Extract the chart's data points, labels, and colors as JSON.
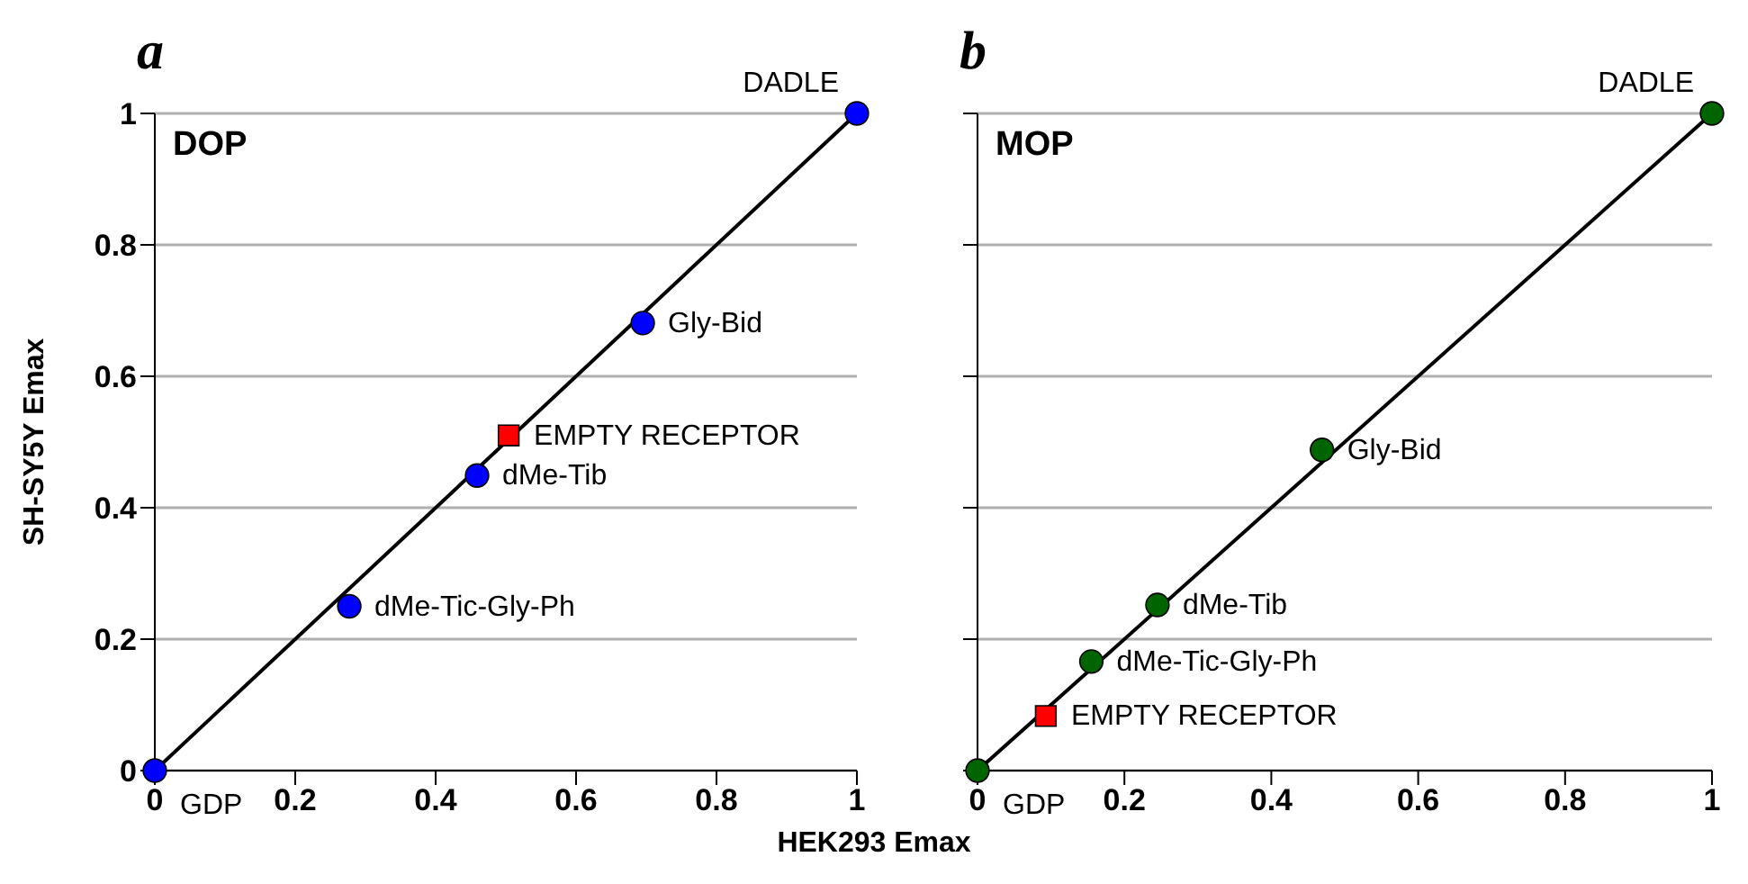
{
  "chart_data": [
    {
      "type": "scatter",
      "title": "a",
      "subtitle": "DOP",
      "xlabel": "HEK293 Emax",
      "ylabel": "SH-SY5Y Emax",
      "xlim": [
        0,
        1
      ],
      "ylim": [
        0,
        1
      ],
      "xticks": [
        0,
        0.2,
        0.4,
        0.6,
        0.8,
        1
      ],
      "yticks": [
        0,
        0.2,
        0.4,
        0.6,
        0.8,
        1
      ],
      "grid": "y",
      "series": [
        {
          "type": "line",
          "color": "#000000",
          "x": [
            0,
            1
          ],
          "values": [
            0,
            1
          ],
          "marker": "none"
        },
        {
          "color": "#0000ff",
          "marker": "circle",
          "x": [
            0,
            0.277,
            0.459,
            0.695,
            1
          ],
          "values": [
            0,
            0.25,
            0.449,
            0.681,
            1
          ]
        },
        {
          "color": "#ff0000",
          "marker": "square",
          "x": [
            0.504
          ],
          "values": [
            0.51
          ]
        }
      ],
      "annotations": [
        {
          "text": "GDP",
          "x": 0,
          "y": 0
        },
        {
          "text": "dMe-Tic-Gly-Ph",
          "x": 0.277,
          "y": 0.25
        },
        {
          "text": "dMe-Tib",
          "x": 0.459,
          "y": 0.449
        },
        {
          "text": "EMPTY RECEPTOR",
          "x": 0.504,
          "y": 0.51
        },
        {
          "text": "Gly-Bid",
          "x": 0.695,
          "y": 0.681
        },
        {
          "text": "DADLE",
          "x": 1,
          "y": 1
        }
      ]
    },
    {
      "type": "scatter",
      "title": "b",
      "subtitle": "MOP",
      "xlim": [
        0,
        1
      ],
      "ylim": [
        0,
        1
      ],
      "xticks": [
        0,
        0.2,
        0.4,
        0.6,
        0.8,
        1
      ],
      "yticks": [
        0,
        0.2,
        0.4,
        0.6,
        0.8,
        1
      ],
      "grid": "y",
      "tick_labels": "x",
      "series": [
        {
          "type": "line",
          "color": "#000000",
          "x": [
            0,
            1
          ],
          "values": [
            0,
            1
          ],
          "marker": "none"
        },
        {
          "color": "#006400",
          "marker": "circle",
          "x": [
            0,
            0.155,
            0.245,
            0.469,
            1
          ],
          "values": [
            0,
            0.166,
            0.252,
            0.488,
            1
          ]
        },
        {
          "color": "#ff0000",
          "marker": "square",
          "x": [
            0.093
          ],
          "values": [
            0.083
          ]
        }
      ],
      "annotations": [
        {
          "text": "GDP",
          "x": 0,
          "y": 0
        },
        {
          "text": "EMPTY RECEPTOR",
          "x": 0.093,
          "y": 0.083
        },
        {
          "text": "dMe-Tic-Gly-Ph",
          "x": 0.155,
          "y": 0.166
        },
        {
          "text": "dMe-Tib",
          "x": 0.245,
          "y": 0.252
        },
        {
          "text": "Gly-Bid",
          "x": 0.469,
          "y": 0.488
        },
        {
          "text": "DADLE",
          "x": 1,
          "y": 1
        }
      ]
    }
  ]
}
